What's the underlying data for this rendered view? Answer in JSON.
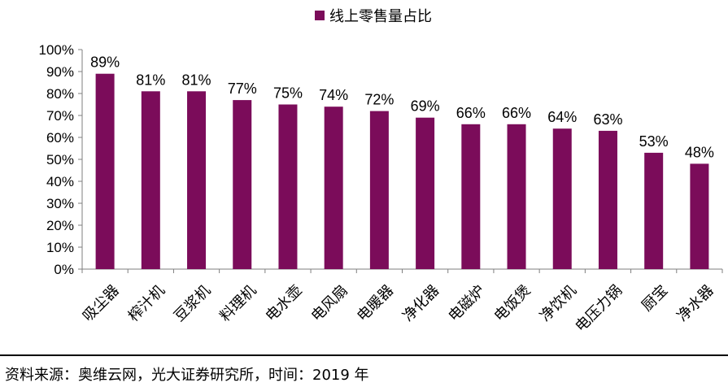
{
  "chart_data": {
    "type": "bar",
    "title": "",
    "xlabel": "",
    "ylabel": "",
    "ylim": [
      0,
      100
    ],
    "yticks": [
      "0%",
      "10%",
      "20%",
      "30%",
      "40%",
      "50%",
      "60%",
      "70%",
      "80%",
      "90%",
      "100%"
    ],
    "grid": false,
    "legend": {
      "position": "top-center",
      "entries": [
        "线上零售量占比"
      ]
    },
    "categories": [
      "吸尘器",
      "榨汁机",
      "豆浆机",
      "料理机",
      "电水壶",
      "电风扇",
      "电暖器",
      "净化器",
      "电磁炉",
      "电饭煲",
      "净饮机",
      "电压力锅",
      "厨宝",
      "净水器"
    ],
    "series": [
      {
        "name": "线上零售量占比",
        "color": "#7B0C5A",
        "values": [
          89,
          81,
          81,
          77,
          75,
          74,
          72,
          69,
          66,
          66,
          64,
          63,
          53,
          48
        ],
        "labels": [
          "89%",
          "81%",
          "81%",
          "77%",
          "75%",
          "74%",
          "72%",
          "69%",
          "66%",
          "66%",
          "64%",
          "63%",
          "53%",
          "48%"
        ]
      }
    ]
  },
  "footer": {
    "source": "资料来源：奥维云网，光大证券研究所，时间：2019 年"
  }
}
